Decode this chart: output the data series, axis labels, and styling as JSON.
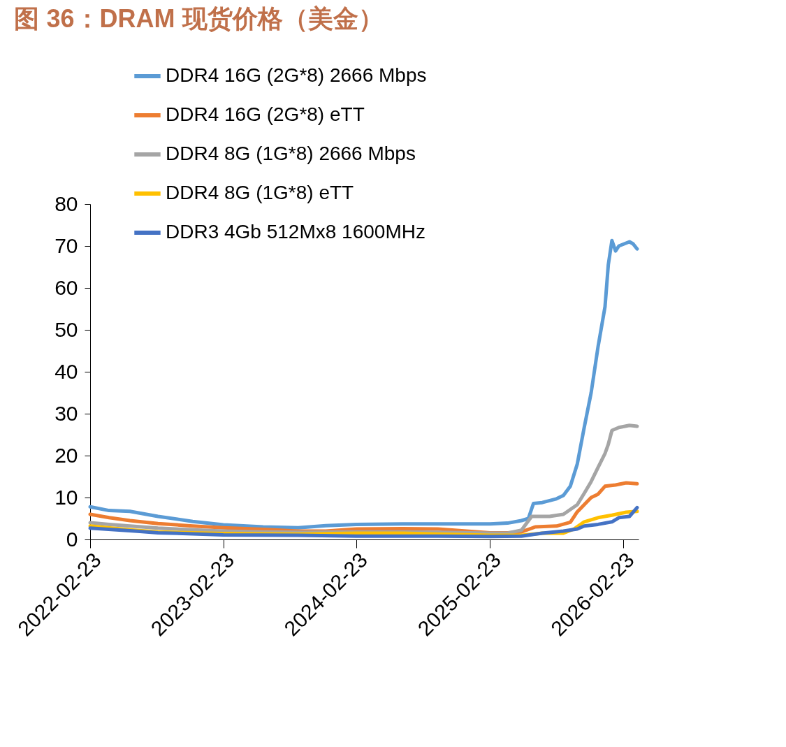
{
  "chart_data": {
    "type": "line",
    "title": "图 36：DRAM 现货价格（美金）",
    "xlim": [
      "2022-02-23",
      "2026-04-06"
    ],
    "xticks": [
      "2022-02-23",
      "2023-02-23",
      "2024-02-23",
      "2025-02-23",
      "2026-02-23"
    ],
    "ylim": [
      0,
      80
    ],
    "yticks": [
      0,
      10,
      20,
      30,
      40,
      50,
      60,
      70,
      80
    ],
    "grid": false,
    "legend": "top",
    "marker": "none",
    "line_style": "solid",
    "series": [
      {
        "name": "DDR4 16G (2G*8) 2666 Mbps",
        "color": "#5b9bd5",
        "x": [
          "2022-02-23",
          "2022-04-16",
          "2022-06-12",
          "2022-08-28",
          "2022-12-01",
          "2023-02-23",
          "2023-06-12",
          "2023-09-16",
          "2023-12-01",
          "2024-02-23",
          "2024-06-28",
          "2024-10-03",
          "2025-02-23",
          "2025-04-12",
          "2025-05-20",
          "2025-06-08",
          "2025-06-22",
          "2025-07-16",
          "2025-08-24",
          "2025-09-12",
          "2025-10-01",
          "2025-10-20",
          "2025-11-08",
          "2025-11-27",
          "2025-12-16",
          "2026-01-04",
          "2026-01-13",
          "2026-01-23",
          "2026-02-02",
          "2026-02-11",
          "2026-03-12",
          "2026-03-22",
          "2026-04-02"
        ],
        "values": [
          7.8,
          6.9,
          6.7,
          5.5,
          4.3,
          3.5,
          3.0,
          2.8,
          3.3,
          3.6,
          3.7,
          3.7,
          3.7,
          3.9,
          4.5,
          5.0,
          8.6,
          8.8,
          9.7,
          10.5,
          12.7,
          18,
          26.7,
          35,
          46,
          55.5,
          65.5,
          71.3,
          68.8,
          70,
          71,
          70.5,
          69.3
        ]
      },
      {
        "name": "DDR4 16G (2G*8) eTT",
        "color": "#ed7d31",
        "x": [
          "2022-02-23",
          "2022-04-16",
          "2022-06-12",
          "2022-08-28",
          "2022-12-01",
          "2023-02-23",
          "2023-06-12",
          "2023-09-16",
          "2023-12-01",
          "2024-02-23",
          "2024-06-28",
          "2024-10-03",
          "2025-02-23",
          "2025-04-12",
          "2025-05-20",
          "2025-06-27",
          "2025-08-24",
          "2025-10-01",
          "2025-10-20",
          "2025-11-08",
          "2025-11-27",
          "2025-12-16",
          "2026-01-04",
          "2026-02-02",
          "2026-03-03",
          "2026-04-02"
        ],
        "values": [
          6.0,
          5.2,
          4.5,
          3.8,
          3.2,
          2.8,
          2.4,
          2.0,
          2.0,
          2.5,
          2.6,
          2.5,
          1.6,
          1.6,
          1.8,
          3.0,
          3.2,
          4.1,
          6.6,
          8.3,
          10,
          10.8,
          12.7,
          13,
          13.5,
          13.3
        ]
      },
      {
        "name": "DDR4 8G (1G*8) 2666 Mbps",
        "color": "#a5a5a5",
        "x": [
          "2022-02-23",
          "2022-04-16",
          "2022-06-12",
          "2022-08-28",
          "2022-12-01",
          "2023-02-23",
          "2023-06-12",
          "2023-09-16",
          "2024-02-23",
          "2024-06-28",
          "2024-10-03",
          "2025-02-23",
          "2025-04-12",
          "2025-05-20",
          "2025-06-17",
          "2025-08-05",
          "2025-09-12",
          "2025-10-20",
          "2025-11-08",
          "2025-11-27",
          "2025-12-16",
          "2026-01-04",
          "2026-01-13",
          "2026-01-23",
          "2026-02-11",
          "2026-03-12",
          "2026-04-02"
        ],
        "values": [
          4.0,
          3.6,
          3.2,
          2.7,
          2.3,
          2.0,
          1.8,
          1.7,
          1.8,
          1.8,
          1.7,
          1.5,
          1.5,
          2.2,
          5.5,
          5.5,
          6,
          8.3,
          11,
          13.8,
          17.2,
          20.5,
          22.7,
          26,
          26.7,
          27.2,
          27.0
        ]
      },
      {
        "name": "DDR4 8G (1G*8) eTT",
        "color": "#ffc000",
        "x": [
          "2022-02-23",
          "2022-06-12",
          "2022-08-28",
          "2023-02-23",
          "2023-09-16",
          "2024-02-23",
          "2024-06-28",
          "2024-10-03",
          "2025-02-23",
          "2025-05-20",
          "2025-07-16",
          "2025-09-12",
          "2025-10-11",
          "2025-11-08",
          "2025-12-16",
          "2026-01-23",
          "2026-03-03",
          "2026-04-02"
        ],
        "values": [
          3.2,
          2.3,
          1.8,
          1.4,
          1.3,
          1.5,
          1.5,
          1.3,
          1.0,
          1.0,
          1.5,
          1.5,
          2.5,
          4.2,
          5.2,
          5.8,
          6.5,
          6.7
        ]
      },
      {
        "name": "DDR3 4Gb 512Mx8 1600MHz",
        "color": "#4472c4",
        "x": [
          "2022-02-23",
          "2022-06-12",
          "2022-08-28",
          "2023-02-23",
          "2023-09-16",
          "2024-02-23",
          "2024-06-28",
          "2024-10-03",
          "2025-02-23",
          "2025-05-20",
          "2025-07-16",
          "2025-09-12",
          "2025-10-20",
          "2025-11-08",
          "2025-12-16",
          "2026-01-23",
          "2026-02-11",
          "2026-03-12",
          "2026-04-02"
        ],
        "values": [
          2.7,
          2.1,
          1.6,
          1.1,
          1.0,
          0.8,
          0.8,
          0.8,
          0.7,
          0.8,
          1.5,
          2.0,
          2.5,
          3.2,
          3.6,
          4.2,
          5.2,
          5.5,
          7.6
        ]
      }
    ]
  }
}
